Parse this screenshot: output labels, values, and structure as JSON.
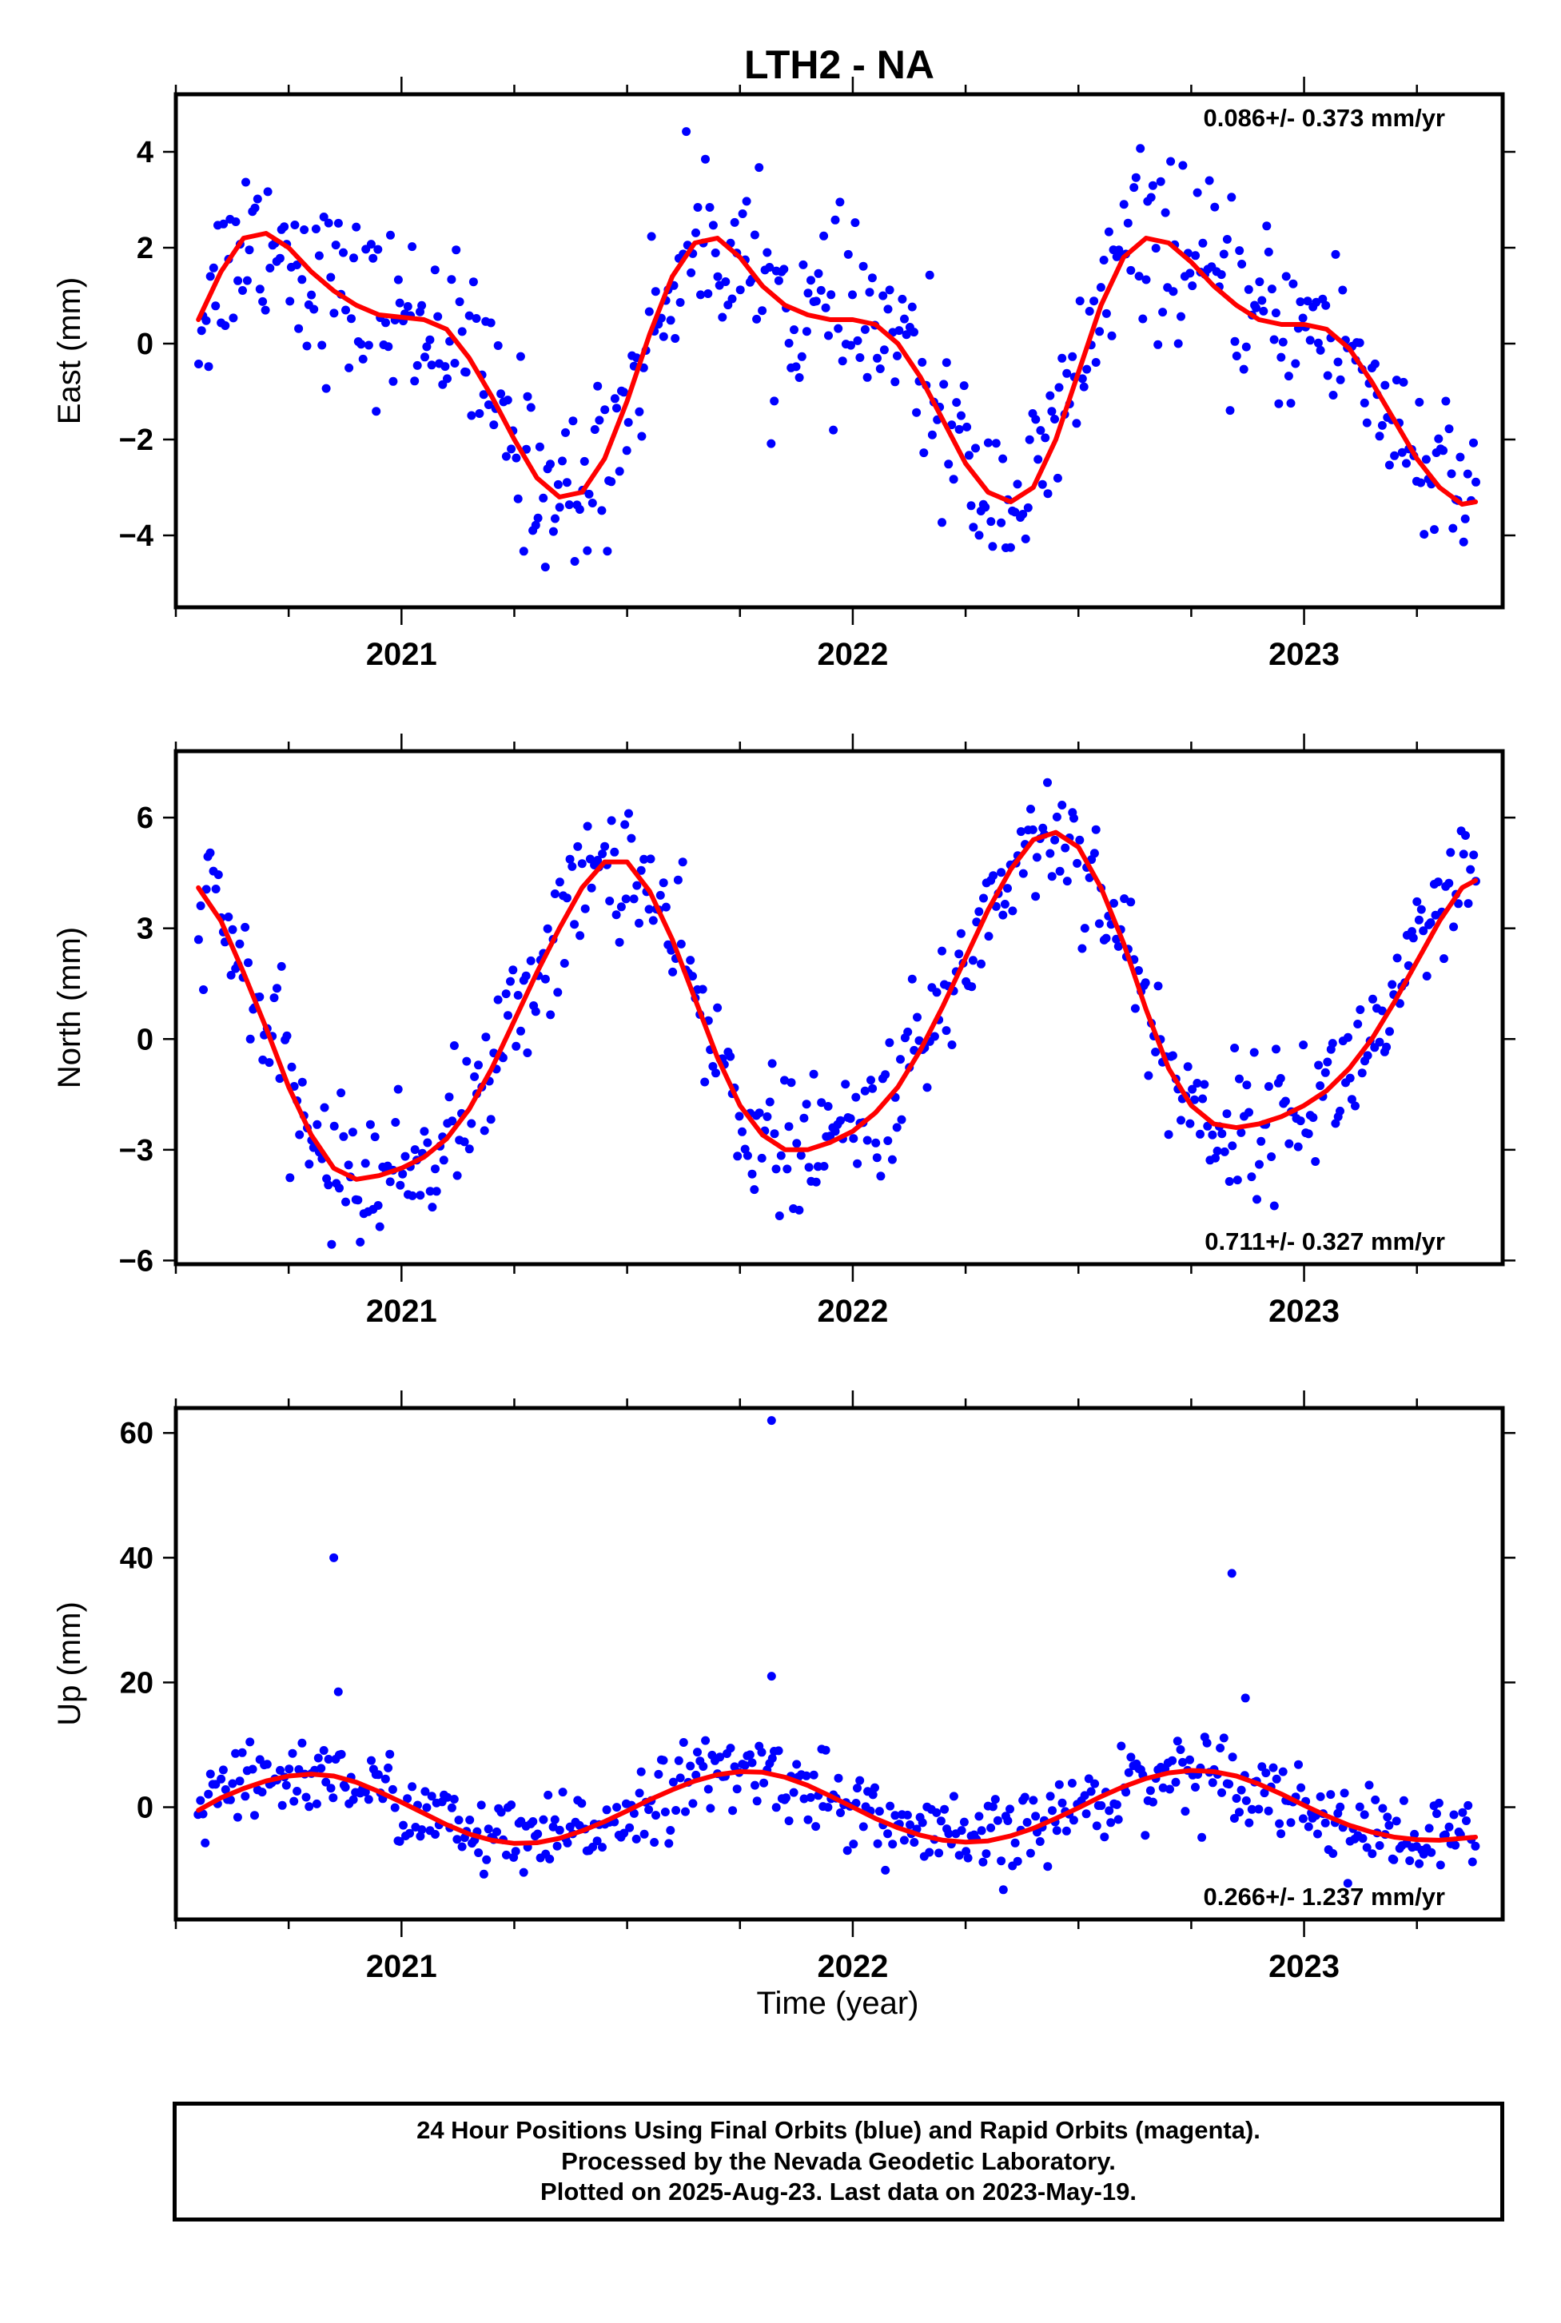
{
  "title": "LTH2 - NA",
  "xlabel": "Time (year)",
  "footer": {
    "line1": "24 Hour Positions Using Final Orbits (blue) and Rapid Orbits (magenta).",
    "line2": "Processed by the Nevada Geodetic Laboratory.",
    "line3": "Plotted on 2025-Aug-23. Last data on 2023-May-19."
  },
  "colors": {
    "data": "#0000ff",
    "fit": "#ff0000",
    "frame": "#000000"
  },
  "chart_data": [
    {
      "type": "scatter",
      "id": "east",
      "ylabel": "East (mm)",
      "rate_text": "0.086+/- 0.373 mm/yr",
      "rate_position": "top-right",
      "xlim": [
        2020.5,
        2023.44
      ],
      "ylim": [
        -5.5,
        5.2
      ],
      "xticks": [
        2021,
        2022,
        2023
      ],
      "xtick_labels": [
        "2021",
        "2022",
        "2023"
      ],
      "yticks": [
        -4,
        -2,
        0,
        2,
        4
      ],
      "ytick_labels": [
        "−4",
        "−2",
        "0",
        "2",
        "4"
      ],
      "series": [
        {
          "values_x": [
            2020.55,
            2020.6,
            2020.65,
            2020.7,
            2020.75,
            2020.8,
            2020.85,
            2020.9,
            2020.95,
            2021.0,
            2021.05,
            2021.1,
            2021.15,
            2021.2,
            2021.25,
            2021.3,
            2021.35,
            2021.4,
            2021.45,
            2021.5,
            2021.55,
            2021.6,
            2021.65,
            2021.7,
            2021.75,
            2021.8,
            2021.85,
            2021.9,
            2021.95,
            2022.0,
            2022.05,
            2022.1,
            2022.15,
            2022.2,
            2022.25,
            2022.3,
            2022.35,
            2022.4,
            2022.45,
            2022.5,
            2022.55,
            2022.6,
            2022.65,
            2022.7,
            2022.75,
            2022.8,
            2022.85,
            2022.9,
            2022.95,
            2023.0,
            2023.05,
            2023.1,
            2023.15,
            2023.2,
            2023.25,
            2023.3,
            2023.35,
            2023.38
          ],
          "values_y": [
            0.5,
            1.5,
            2.2,
            2.3,
            2.0,
            1.5,
            1.1,
            0.8,
            0.6,
            0.55,
            0.5,
            0.3,
            -0.3,
            -1.1,
            -2.0,
            -2.8,
            -3.2,
            -3.1,
            -2.4,
            -1.2,
            0.2,
            1.4,
            2.1,
            2.2,
            1.8,
            1.2,
            0.8,
            0.6,
            0.5,
            0.5,
            0.4,
            0.0,
            -0.7,
            -1.6,
            -2.5,
            -3.1,
            -3.3,
            -3.0,
            -2.0,
            -0.6,
            0.8,
            1.8,
            2.2,
            2.1,
            1.7,
            1.2,
            0.8,
            0.5,
            0.4,
            0.4,
            0.3,
            -0.1,
            -0.8,
            -1.6,
            -2.4,
            -3.0,
            -3.35,
            -3.3
          ]
        }
      ]
    },
    {
      "type": "scatter",
      "id": "north",
      "ylabel": "North (mm)",
      "rate_text": "0.711+/- 0.327 mm/yr",
      "rate_position": "bottom-right",
      "xlim": [
        2020.5,
        2023.44
      ],
      "ylim": [
        -6.1,
        7.8
      ],
      "xticks": [
        2021,
        2022,
        2023
      ],
      "xtick_labels": [
        "2021",
        "2022",
        "2023"
      ],
      "yticks": [
        -6,
        -3,
        0,
        3,
        6
      ],
      "ytick_labels": [
        "−6",
        "−3",
        "0",
        "3",
        "6"
      ],
      "series": [
        {
          "values_x": [
            2020.55,
            2020.6,
            2020.65,
            2020.7,
            2020.75,
            2020.8,
            2020.85,
            2020.9,
            2020.95,
            2021.0,
            2021.05,
            2021.1,
            2021.15,
            2021.2,
            2021.25,
            2021.3,
            2021.35,
            2021.4,
            2021.45,
            2021.5,
            2021.55,
            2021.6,
            2021.65,
            2021.7,
            2021.75,
            2021.8,
            2021.85,
            2021.9,
            2021.95,
            2022.0,
            2022.05,
            2022.1,
            2022.15,
            2022.2,
            2022.25,
            2022.3,
            2022.35,
            2022.4,
            2022.45,
            2022.5,
            2022.55,
            2022.6,
            2022.65,
            2022.7,
            2022.75,
            2022.8,
            2022.85,
            2022.9,
            2022.95,
            2023.0,
            2023.05,
            2023.1,
            2023.15,
            2023.2,
            2023.25,
            2023.3,
            2023.35,
            2023.38
          ],
          "values_y": [
            4.1,
            3.2,
            1.8,
            0.3,
            -1.3,
            -2.6,
            -3.5,
            -3.8,
            -3.7,
            -3.5,
            -3.2,
            -2.7,
            -1.9,
            -0.8,
            0.5,
            1.8,
            3.0,
            4.1,
            4.8,
            4.8,
            4.0,
            2.7,
            1.1,
            -0.5,
            -1.8,
            -2.6,
            -3.0,
            -3.0,
            -2.8,
            -2.5,
            -2.0,
            -1.3,
            -0.3,
            0.9,
            2.2,
            3.5,
            4.6,
            5.4,
            5.6,
            5.2,
            4.1,
            2.6,
            0.8,
            -0.8,
            -1.8,
            -2.3,
            -2.4,
            -2.3,
            -2.1,
            -1.8,
            -1.4,
            -0.8,
            0.0,
            1.0,
            2.1,
            3.2,
            4.1,
            4.3
          ]
        }
      ]
    },
    {
      "type": "scatter",
      "id": "up",
      "ylabel": "Up (mm)",
      "rate_text": "0.266+/- 1.237 mm/yr",
      "rate_position": "bottom-right",
      "xlim": [
        2020.5,
        2023.44
      ],
      "ylim": [
        -18,
        64
      ],
      "xticks": [
        2021,
        2022,
        2023
      ],
      "xtick_labels": [
        "2021",
        "2022",
        "2023"
      ],
      "yticks": [
        0,
        20,
        40,
        60
      ],
      "ytick_labels": [
        "0",
        "20",
        "40",
        "60"
      ],
      "outliers": [
        [
          2020.85,
          40
        ],
        [
          2021.82,
          62
        ],
        [
          2022.84,
          37.5
        ],
        [
          2021.82,
          21
        ],
        [
          2022.87,
          17.5
        ],
        [
          2020.86,
          18.5
        ]
      ],
      "series": [
        {
          "values_x": [
            2020.55,
            2020.6,
            2020.65,
            2020.7,
            2020.75,
            2020.8,
            2020.85,
            2020.9,
            2020.95,
            2021.0,
            2021.05,
            2021.1,
            2021.15,
            2021.2,
            2021.25,
            2021.3,
            2021.35,
            2021.4,
            2021.45,
            2021.5,
            2021.55,
            2021.6,
            2021.65,
            2021.7,
            2021.75,
            2021.8,
            2021.85,
            2021.9,
            2021.95,
            2022.0,
            2022.05,
            2022.1,
            2022.15,
            2022.2,
            2022.25,
            2022.3,
            2022.35,
            2022.4,
            2022.45,
            2022.5,
            2022.55,
            2022.6,
            2022.65,
            2022.7,
            2022.75,
            2022.8,
            2022.85,
            2022.9,
            2022.95,
            2023.0,
            2023.05,
            2023.1,
            2023.15,
            2023.2,
            2023.25,
            2023.3,
            2023.35,
            2023.38
          ],
          "values_y": [
            -0.5,
            1.5,
            3.0,
            4.2,
            5.0,
            5.3,
            5.0,
            4.0,
            2.5,
            0.8,
            -1.0,
            -2.8,
            -4.3,
            -5.3,
            -5.8,
            -5.7,
            -5.0,
            -3.8,
            -2.3,
            -0.6,
            1.2,
            2.8,
            4.2,
            5.2,
            5.7,
            5.6,
            4.8,
            3.5,
            1.8,
            0.0,
            -1.8,
            -3.3,
            -4.5,
            -5.3,
            -5.6,
            -5.4,
            -4.6,
            -3.4,
            -1.8,
            -0.1,
            1.7,
            3.3,
            4.6,
            5.5,
            5.9,
            5.7,
            5.0,
            3.7,
            2.1,
            0.3,
            -1.4,
            -2.9,
            -4.0,
            -4.8,
            -5.2,
            -5.3,
            -5.0,
            -4.8
          ]
        }
      ]
    }
  ]
}
